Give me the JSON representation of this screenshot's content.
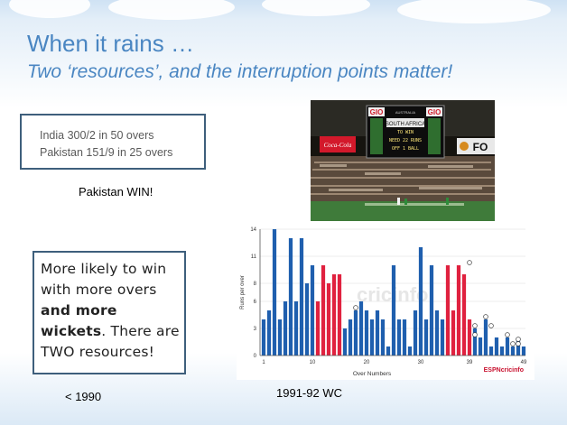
{
  "slide": {
    "title": "When it rains …",
    "subtitle": "Two ‘resources’, and the interruption points matter!",
    "score_lines": [
      "India 300/2 in 50 overs",
      "Pakistan 151/9 in 25 overs"
    ],
    "result": "Pakistan WIN!",
    "note": {
      "part1": "More likely to win with more overs ",
      "bold": "and more wickets",
      "part2": ". There are TWO resources!"
    },
    "label_left": "< 1990",
    "label_right": "1991-92 WC"
  },
  "photo": {
    "scoreboard_brand": "GIO",
    "scoreboard_small": "AUSTRALIA",
    "scoreboard_lines": [
      "SOUTH AFRICA",
      "TO WIN",
      "NEED 22 RUNS",
      "OFF 1 BALL"
    ],
    "sponsor": "Coca-Cola",
    "side_text": "FO"
  },
  "colors": {
    "title": "#4a86c2",
    "bar_blue": "#1f5fae",
    "bar_red": "#e0213f",
    "box_border": "#3e5f7c"
  },
  "chart_data": {
    "type": "bar",
    "xlabel": "Over Numbers",
    "ylabel": "Runs per over",
    "ylim": [
      0,
      14
    ],
    "yticks": [
      0,
      3,
      6,
      8,
      11,
      14
    ],
    "xticks": [
      1,
      10,
      20,
      30,
      39,
      49
    ],
    "x_tick_labels": [
      "1",
      "10",
      "20",
      "30",
      "39",
      "49"
    ],
    "watermark": "cricinfo",
    "logo": "ESPNcricinfo",
    "overs": [
      1,
      2,
      3,
      4,
      5,
      6,
      7,
      8,
      9,
      10,
      11,
      12,
      13,
      14,
      15,
      16,
      17,
      18,
      19,
      20,
      21,
      22,
      23,
      24,
      25,
      26,
      27,
      28,
      29,
      30,
      31,
      32,
      33,
      34,
      35,
      36,
      37,
      38,
      39,
      40,
      41,
      42,
      43,
      44,
      45,
      46,
      47,
      48,
      49
    ],
    "runs": [
      4,
      5,
      14,
      4,
      6,
      13,
      6,
      13,
      8,
      10,
      6,
      10,
      8,
      9,
      9,
      3,
      4,
      5,
      6,
      5,
      4,
      5,
      4,
      1,
      10,
      4,
      4,
      1,
      5,
      12,
      4,
      10,
      5,
      4,
      10,
      5,
      10,
      9,
      4,
      3,
      2,
      4,
      1,
      2,
      1,
      2,
      1,
      2,
      1
    ],
    "series_colors": [
      "b",
      "b",
      "b",
      "b",
      "b",
      "b",
      "b",
      "b",
      "b",
      "b",
      "r",
      "r",
      "r",
      "r",
      "r",
      "b",
      "b",
      "b",
      "b",
      "b",
      "b",
      "b",
      "b",
      "b",
      "b",
      "b",
      "b",
      "b",
      "b",
      "b",
      "b",
      "b",
      "b",
      "b",
      "r",
      "r",
      "r",
      "r",
      "r",
      "b",
      "b",
      "b",
      "b",
      "b",
      "b",
      "b",
      "b",
      "b",
      "b"
    ],
    "wickets": [
      {
        "over": 18,
        "height": 5
      },
      {
        "over": 39,
        "height": 10
      },
      {
        "over": 40,
        "height": 3
      },
      {
        "over": 40,
        "height": 2
      },
      {
        "over": 42,
        "height": 4
      },
      {
        "over": 43,
        "height": 3
      },
      {
        "over": 46,
        "height": 2
      },
      {
        "over": 47,
        "height": 1
      },
      {
        "over": 48,
        "height": 1.5
      },
      {
        "over": 48,
        "height": 1
      }
    ]
  }
}
